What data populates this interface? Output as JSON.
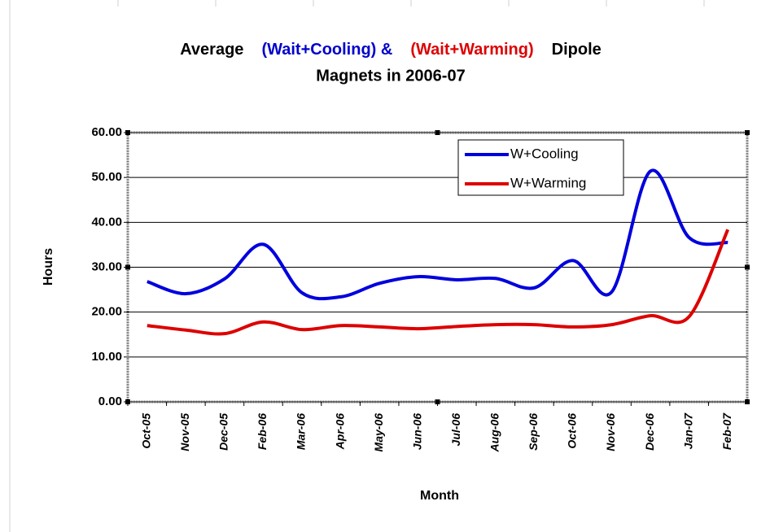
{
  "chart_data": {
    "type": "line",
    "title_segments": [
      {
        "text": "Average",
        "color": "#000000"
      },
      {
        "text": "(Wait+Cooling) &",
        "color": "#0000cc"
      },
      {
        "text": "(Wait+Warming)",
        "color": "#dd0000"
      },
      {
        "text": "Dipole",
        "color": "#000000"
      },
      {
        "text": "Magnets in 2006-07",
        "color": "#000000"
      }
    ],
    "x_label": "Month",
    "y_label": "Hours",
    "categories": [
      "Oct-05",
      "Nov-05",
      "Dec-05",
      "Feb-06",
      "Mar-06",
      "Apr-06",
      "May-06",
      "Jun-06",
      "Jul-06",
      "Aug-06",
      "Sep-06",
      "Oct-06",
      "Nov-06",
      "Dec-06",
      "Jan-07",
      "Feb-07"
    ],
    "series": [
      {
        "name": "W+Cooling",
        "color": "#0000dd",
        "values": [
          26.8,
          24.1,
          27.4,
          35.1,
          24.3,
          23.4,
          26.4,
          27.9,
          27.2,
          27.5,
          25.4,
          31.5,
          24.5,
          51.4,
          36.6,
          35.5
        ]
      },
      {
        "name": "W+Warming",
        "color": "#dd0000",
        "values": [
          17.0,
          16.0,
          15.2,
          17.8,
          16.1,
          17.0,
          16.7,
          16.3,
          16.8,
          17.2,
          17.2,
          16.7,
          17.2,
          19.2,
          19.0,
          38.4
        ]
      }
    ],
    "ylim": [
      0,
      60
    ],
    "yticks": [
      {
        "value": 0,
        "label": "0.00"
      },
      {
        "value": 10,
        "label": "10.00"
      },
      {
        "value": 20,
        "label": "20.00"
      },
      {
        "value": 30,
        "label": "30.00"
      },
      {
        "value": 40,
        "label": "40.00"
      },
      {
        "value": 50,
        "label": "50.00"
      },
      {
        "value": 60,
        "label": "60.00"
      }
    ],
    "grid": true,
    "smooth": true,
    "legend": "upper right"
  }
}
